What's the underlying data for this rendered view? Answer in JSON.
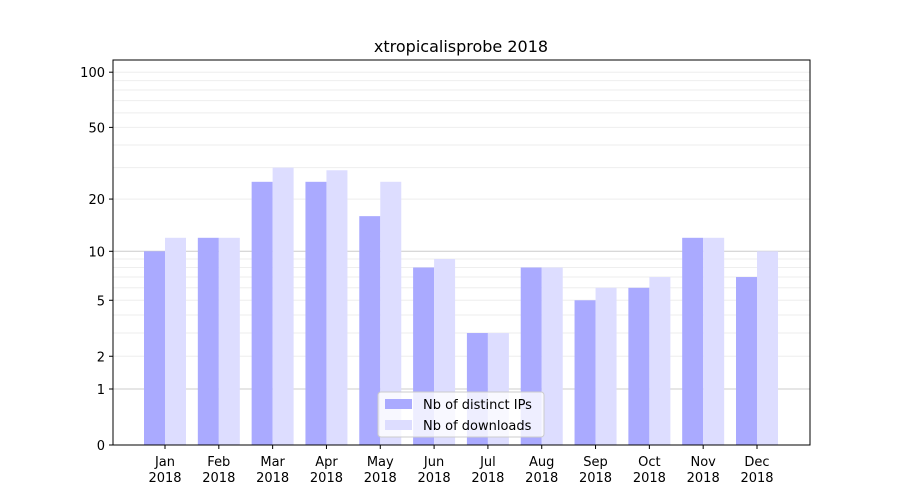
{
  "chart_data": {
    "type": "bar",
    "title": "xtropicalisprobe 2018",
    "xlabel": "",
    "ylabel": "",
    "yscale": "log(1+y)",
    "ylim": [
      0,
      110
    ],
    "yticks": [
      0,
      1,
      2,
      5,
      10,
      20,
      50,
      100
    ],
    "grid": true,
    "legend_position": "lower-center",
    "categories": [
      "Jan\n2018",
      "Feb\n2018",
      "Mar\n2018",
      "Apr\n2018",
      "May\n2018",
      "Jun\n2018",
      "Jul\n2018",
      "Aug\n2018",
      "Sep\n2018",
      "Oct\n2018",
      "Nov\n2018",
      "Dec\n2018"
    ],
    "series": [
      {
        "name": "Nb of distinct IPs",
        "color": "#aaaaff",
        "values": [
          10,
          12,
          25,
          25,
          16,
          8,
          3,
          8,
          5,
          6,
          12,
          7
        ]
      },
      {
        "name": "Nb of downloads",
        "color": "#ddddff",
        "values": [
          12,
          12,
          30,
          29,
          25,
          9,
          3,
          8,
          6,
          7,
          12,
          10
        ]
      }
    ]
  }
}
